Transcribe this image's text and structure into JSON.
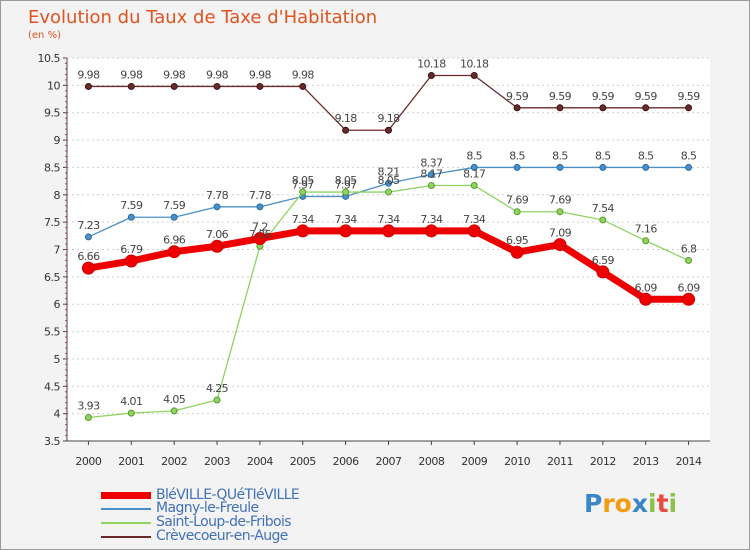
{
  "title": "Evolution du Taux de Taxe d'Habitation",
  "subtitle": "(en %)",
  "chart_data": {
    "type": "line",
    "title": "Evolution du Taux de Taxe d'Habitation",
    "ylabel": "(en %)",
    "xlabel": "",
    "x": [
      2000,
      2001,
      2002,
      2003,
      2004,
      2005,
      2006,
      2007,
      2008,
      2009,
      2010,
      2011,
      2012,
      2013,
      2014
    ],
    "ylim": [
      3.5,
      10.5
    ],
    "yticks": [
      3.5,
      4,
      4.5,
      5,
      5.5,
      6,
      6.5,
      7,
      7.5,
      8,
      8.5,
      9,
      9.5,
      10,
      10.5
    ],
    "grid": true,
    "legend_position": "bottom-left",
    "series": [
      {
        "name": "BléVILLE-QUéTIéVILLE",
        "color": "#ee0000",
        "values": [
          6.66,
          6.79,
          6.96,
          7.06,
          7.2,
          7.34,
          7.34,
          7.34,
          7.34,
          7.34,
          6.95,
          7.09,
          6.59,
          6.09,
          6.09
        ]
      },
      {
        "name": "Magny-le-Freule",
        "color": "#4a90c8",
        "values": [
          7.23,
          7.59,
          7.59,
          7.78,
          7.78,
          7.97,
          7.97,
          8.21,
          8.37,
          8.5,
          8.5,
          8.5,
          8.5,
          8.5,
          8.5
        ]
      },
      {
        "name": "Saint-Loup-de-Fribois",
        "color": "#8fd460",
        "values": [
          3.93,
          4.01,
          4.05,
          4.25,
          7.06,
          8.05,
          8.05,
          8.05,
          8.17,
          8.17,
          7.69,
          7.69,
          7.54,
          7.16,
          6.8
        ]
      },
      {
        "name": "Crèvecoeur-en-Auge",
        "color": "#6b2a2a",
        "values": [
          9.98,
          9.98,
          9.98,
          9.98,
          9.98,
          9.98,
          9.18,
          9.18,
          10.18,
          10.18,
          9.59,
          9.59,
          9.59,
          9.59,
          9.59
        ]
      }
    ]
  },
  "logo": {
    "text": "Proxiti",
    "letters": [
      "P",
      "r",
      "o",
      "x",
      "i",
      "t",
      "i"
    ],
    "colors": [
      "#3a86c8",
      "#f39c12",
      "#f39c12",
      "#3a86c8",
      "#8bc34a",
      "#e74c3c",
      "#8bc34a"
    ]
  }
}
